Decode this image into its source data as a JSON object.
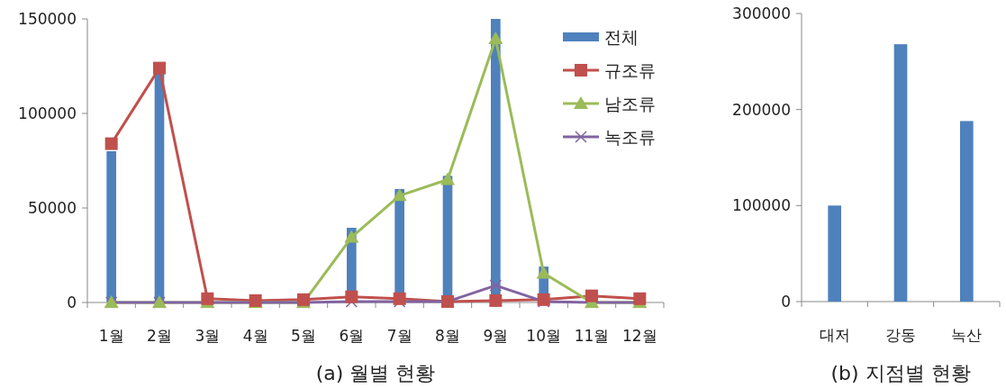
{
  "chart_data": [
    {
      "type": "bar",
      "title": "(a) 월별 현황",
      "categories": [
        "1월",
        "2월",
        "3월",
        "4월",
        "5월",
        "6월",
        "7월",
        "8월",
        "9월",
        "10월",
        "11월",
        "12월"
      ],
      "ylim": [
        0,
        150000
      ],
      "yticks": [
        0,
        50000,
        100000,
        150000
      ],
      "grid": false,
      "legend": "top right",
      "series": [
        {
          "name": "전체",
          "type": "bar",
          "color": "#4f81bd",
          "values": [
            80000,
            122000,
            null,
            null,
            null,
            39500,
            60000,
            67000,
            150000,
            19000,
            null,
            null
          ]
        },
        {
          "name": "규조류",
          "type": "line",
          "marker": "square",
          "color": "#c0504d",
          "values": [
            84000,
            124000,
            2000,
            1000,
            1500,
            3000,
            2000,
            500,
            1000,
            1500,
            3500,
            2000
          ]
        },
        {
          "name": "남조류",
          "type": "line",
          "marker": "triangle",
          "color": "#9bbb59",
          "values": [
            0,
            0,
            0,
            0,
            0,
            34500,
            56500,
            65000,
            139500,
            15500,
            0,
            0
          ]
        },
        {
          "name": "녹조류",
          "type": "line",
          "marker": "cross",
          "color": "#8064a2",
          "values": [
            0,
            0,
            0,
            0,
            0,
            500,
            500,
            500,
            9000,
            500,
            0,
            0
          ]
        }
      ]
    },
    {
      "type": "bar",
      "title": "(b) 지점별 현황",
      "categories": [
        "대저",
        "강동",
        "녹산"
      ],
      "ylim": [
        0,
        300000
      ],
      "yticks": [
        0,
        100000,
        200000,
        300000
      ],
      "grid": false,
      "color": "#4f81bd",
      "values": [
        100000,
        268000,
        188000
      ]
    }
  ]
}
